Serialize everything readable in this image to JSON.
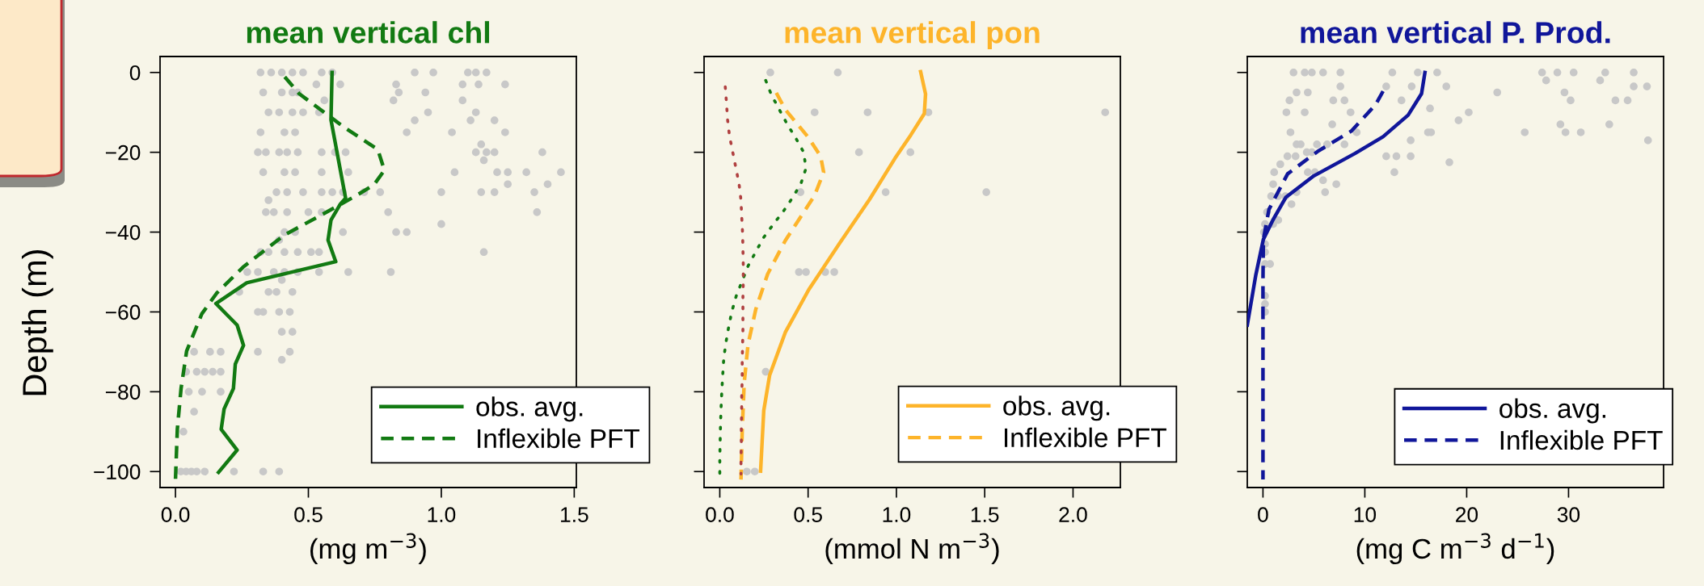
{
  "chart_data": [
    {
      "type": "line",
      "title": "mean vertical chl",
      "xlabel": "(mg m$^{−3}$)",
      "ylabel": "Depth (m)",
      "xlim": [
        -0.058,
        1.508
      ],
      "xticks": [
        {
          "value": 0,
          "label": "0.0"
        },
        {
          "value": 0.5,
          "label": "0.5"
        },
        {
          "value": 1,
          "label": "1.0"
        },
        {
          "value": 1.5,
          "label": "1.5"
        }
      ],
      "ylim": [
        -104,
        4
      ],
      "yticks": [
        {
          "value": -100,
          "label": "−100"
        },
        {
          "value": -80,
          "label": "−80"
        },
        {
          "value": -60,
          "label": "−60"
        },
        {
          "value": -40,
          "label": "−40"
        },
        {
          "value": -20,
          "label": "−20"
        },
        0
      ],
      "grid": false,
      "legend": "bottom right",
      "series": [
        {
          "type": "scatter",
          "color": "#c8c8c8",
          "marker": "circle",
          "x": [
            0.32,
            0.36,
            0.4,
            0.44,
            0.48,
            0.55,
            0.59,
            0.9,
            0.97,
            1.1,
            1.13,
            1.17,
            0.83,
            1.08,
            1.14,
            1.24,
            0.53,
            0.62,
            0.33,
            0.4,
            0.44,
            0.46,
            0.84,
            0.94,
            0.56,
            0.82,
            1.08,
            0.35,
            0.39,
            0.44,
            0.48,
            0.54,
            0.95,
            1.13,
            0.9,
            1.11,
            1.2,
            0.32,
            0.41,
            0.45,
            0.87,
            1.04,
            1.24,
            1.15,
            0.31,
            0.34,
            0.39,
            0.42,
            0.46,
            0.55,
            0.6,
            0.64,
            1.13,
            1.17,
            1.2,
            1.38,
            1.16,
            0.33,
            0.41,
            0.45,
            0.55,
            0.65,
            1.05,
            1.21,
            1.25,
            1.32,
            1.45,
            1.25,
            1.4,
            0.38,
            0.42,
            0.48,
            0.55,
            0.59,
            0.63,
            0.71,
            0.77,
            1.0,
            1.15,
            1.2,
            1.35,
            0.35,
            0.34,
            0.37,
            0.42,
            0.5,
            0.55,
            0.8,
            1.36,
            1.0,
            0.41,
            0.45,
            0.63,
            0.83,
            0.87,
            0.39,
            0.32,
            0.35,
            0.41,
            0.46,
            0.51,
            0.54,
            1.16,
            0.27,
            0.31,
            0.37,
            0.41,
            0.46,
            0.54,
            0.65,
            0.81,
            0.4,
            0.24,
            0.35,
            0.38,
            0.44,
            0.31,
            0.33,
            0.39,
            0.43,
            0.4,
            0.44,
            0.07,
            0.13,
            0.17,
            0.31,
            0.43,
            0.4,
            0.04,
            0.08,
            0.11,
            0.14,
            0.17,
            0.05,
            0.1,
            0.17,
            0.07,
            0.03,
            0.02,
            0.04,
            0.06,
            0.08,
            0.11,
            0.22,
            0.33,
            0.39
          ],
          "values": [
            0,
            0,
            0,
            0,
            0,
            0,
            0,
            0,
            0,
            0,
            0,
            0,
            -3,
            -3,
            -3,
            -3,
            -3,
            -3,
            -5,
            -5,
            -5,
            -5,
            -5,
            -5,
            -7,
            -7,
            -7,
            -10,
            -10,
            -10,
            -10,
            -10,
            -10,
            -10,
            -12,
            -12,
            -12,
            -15,
            -15,
            -15,
            -15,
            -15,
            -15,
            -18,
            -20,
            -20,
            -20,
            -20,
            -20,
            -20,
            -20,
            -20,
            -20,
            -20,
            -20,
            -20,
            -22,
            -25,
            -25,
            -25,
            -25,
            -25,
            -25,
            -25,
            -25,
            -25,
            -25,
            -28,
            -28,
            -30,
            -30,
            -30,
            -30,
            -30,
            -30,
            -30,
            -30,
            -30,
            -30,
            -30,
            -30,
            -32,
            -35,
            -35,
            -35,
            -35,
            -35,
            -35,
            -35,
            -38,
            -40,
            -40,
            -40,
            -40,
            -40,
            -42,
            -45,
            -45,
            -45,
            -45,
            -45,
            -45,
            -45,
            -50,
            -50,
            -50,
            -50,
            -50,
            -50,
            -50,
            -50,
            -52,
            -55,
            -55,
            -55,
            -55,
            -60,
            -60,
            -60,
            -60,
            -65,
            -65,
            -70,
            -70,
            -70,
            -70,
            -70,
            -72,
            -75,
            -75,
            -75,
            -75,
            -75,
            -80,
            -80,
            -80,
            -85,
            -90,
            -100,
            -100,
            -100,
            -100,
            -100,
            -100,
            -100,
            -100
          ]
        },
        {
          "name": "obs. avg.",
          "color": "#127a12",
          "line_style": "solid",
          "x": [
            0.589,
            0.585,
            0.64,
            0.62,
            0.585,
            0.574,
            0.603,
            0.268,
            0.152,
            0.232,
            0.256,
            0.225,
            0.218,
            0.183,
            0.172,
            0.232,
            0.162
          ],
          "values": [
            0,
            -11.9,
            -31.5,
            -33,
            -37,
            -42,
            -47.4,
            -52.7,
            -57.9,
            -63.3,
            -68.4,
            -73.1,
            -79.2,
            -84.3,
            -89.4,
            -94.6,
            -100.2
          ]
        },
        {
          "name": "Inflexible PFT",
          "color": "#127a12",
          "line_style": "dashed",
          "x": [
            0.411,
            0.465,
            0.634,
            0.761,
            0.786,
            0.746,
            0.676,
            0.549,
            0.408,
            0.254,
            0.155,
            0.099,
            0.042,
            0.021,
            0.007,
            0
          ],
          "values": [
            -1.1,
            -5.3,
            -13.7,
            -19.3,
            -24.5,
            -28.2,
            -31,
            -35.7,
            -40.8,
            -48.8,
            -55.3,
            -60.5,
            -69.8,
            -79.2,
            -89.4,
            -102
          ]
        }
      ]
    },
    {
      "type": "line",
      "title": "mean vertical pon",
      "xlabel": "(mmol N m$^{−3}$)",
      "xlim": [
        -0.089,
        2.268
      ],
      "xticks": [
        {
          "value": 0,
          "label": "0.0"
        },
        {
          "value": 0.5,
          "label": "0.5"
        },
        {
          "value": 1,
          "label": "1.0"
        },
        {
          "value": 1.5,
          "label": "1.5"
        },
        {
          "value": 2,
          "label": "2.0"
        }
      ],
      "ylim": [
        -104,
        4
      ],
      "yticks": [
        -100,
        -80,
        -60,
        -40,
        -20,
        0
      ],
      "tick_labels": "x",
      "grid": false,
      "legend": "bottom right",
      "series": [
        {
          "type": "scatter",
          "color": "#c8c8c8",
          "marker": "circle",
          "x": [
            0.286,
            0.668,
            0.537,
            0.837,
            1.181,
            2.182,
            0.788,
            1.079,
            0.457,
            0.939,
            1.509,
            0.448,
            0.488,
            0.597,
            0.648,
            0.26,
            0.153,
            0.198
          ],
          "values": [
            0,
            0,
            -10,
            -10,
            -10,
            -10,
            -20,
            -20,
            -30,
            -30,
            -30,
            -50,
            -50,
            -50,
            -50,
            -75,
            -100,
            -100
          ]
        },
        {
          "name": "obs. avg.",
          "color": "#fdb42a",
          "line_style": "solid",
          "x": [
            1.137,
            1.165,
            1.158,
            1.081,
            0.992,
            0.848,
            0.681,
            0.504,
            0.371,
            0.282,
            0.249,
            0.231
          ],
          "values": [
            0.2,
            -5.4,
            -10.3,
            -15.7,
            -21.5,
            -31.8,
            -42.6,
            -54.4,
            -65.1,
            -75.9,
            -84.7,
            -99.9
          ]
        },
        {
          "name": "Inflexible PFT",
          "color": "#fdb42a",
          "line_style": "dashed",
          "x": [
            0.32,
            0.371,
            0.5,
            0.571,
            0.588,
            0.537,
            0.371,
            0.271,
            0.204,
            0.16,
            0.138,
            0.127,
            0.12
          ],
          "values": [
            -5.1,
            -9.3,
            -16.2,
            -21,
            -25,
            -30.8,
            -42.1,
            -50.5,
            -59.3,
            -68.1,
            -77.9,
            -89.7,
            -102
          ]
        },
        {
          "color": "#127a12",
          "line_style": "dotted",
          "x": [
            0.26,
            0.293,
            0.337,
            0.382,
            0.431,
            0.475,
            0.488,
            0.459,
            0.41,
            0.36,
            0.304,
            0.249,
            0.204,
            0.16,
            0.127,
            0.093,
            0.067,
            0.049,
            0.033,
            0.022,
            0.016,
            0.011,
            0.007,
            0.004,
            0.002,
            0,
            0
          ],
          "values": [
            -2,
            -5.7,
            -9.3,
            -13,
            -16.5,
            -20,
            -24,
            -27.9,
            -31.5,
            -34.8,
            -38,
            -41.3,
            -44.9,
            -48.5,
            -52.2,
            -56,
            -60.1,
            -64.1,
            -68.1,
            -72,
            -76.2,
            -80.3,
            -84.3,
            -88.4,
            -92.5,
            -96.6,
            -100.6
          ]
        },
        {
          "color": "#b04040",
          "line_style": "dotted",
          "x": [
            0.031,
            0.038,
            0.044,
            0.055,
            0.073,
            0.091,
            0.109,
            0.12,
            0.124,
            0.129,
            0.131,
            0.133,
            0.133,
            0.131,
            0.131,
            0.131,
            0.129,
            0.127,
            0.127,
            0.124,
            0.124,
            0.122,
            0.122,
            0.12,
            0.12
          ],
          "values": [
            -3.6,
            -7.7,
            -11.8,
            -15.9,
            -19.9,
            -23.9,
            -27.9,
            -32,
            -36,
            -40.2,
            -44.2,
            -48.3,
            -52.4,
            -56.3,
            -60.4,
            -64.4,
            -68.5,
            -72.6,
            -76.7,
            -80.8,
            -84.7,
            -88.6,
            -92.6,
            -96.6,
            -100.6
          ]
        }
      ]
    },
    {
      "type": "line",
      "title": "mean vertical P. Prod.",
      "xlabel": "(mg C m$^{−3}$ d$^{−1}$)",
      "xlim": [
        -1.54,
        39.33
      ],
      "xticks": [
        0,
        10,
        20,
        30
      ],
      "ylim": [
        -104,
        4
      ],
      "yticks": [
        -100,
        -80,
        -60,
        -40,
        -20,
        0
      ],
      "tick_labels": "x",
      "grid": false,
      "legend": "bottom right",
      "series": [
        {
          "type": "scatter",
          "color": "#c8c8c8",
          "marker": "circle",
          "x": [
            3.0,
            4.1,
            4.8,
            5.9,
            7.6,
            12.7,
            15.2,
            17.1,
            27.4,
            28.9,
            30.5,
            33.6,
            36.4,
            27.8,
            33.1,
            7.6,
            12.1,
            14.6,
            18.0,
            36.4,
            37.7,
            3.3,
            4.4,
            23.0,
            29.6,
            2.6,
            6.9,
            8.0,
            13.6,
            30.2,
            34.6,
            35.8,
            16.4,
            2.3,
            4.1,
            8.6,
            20.2,
            19.2,
            6.8,
            29.2,
            34.0,
            2.7,
            9.2,
            16.2,
            16.5,
            29.7,
            31.2,
            25.7,
            14.5,
            37.8,
            3.3,
            3.7,
            5.3,
            6.3,
            8.0,
            4.3,
            4.8,
            2.4,
            3.2,
            12.1,
            13.1,
            14.5,
            18.3,
            1.7,
            1.1,
            4.4,
            5.1,
            12.9,
            5.9,
            1.0,
            7.2,
            3.3,
            6.1,
            0.8,
            1.5,
            2.2,
            2.8,
            0.4,
            1.5,
            0.2,
            1.0,
            0.1,
            0.2,
            0.2,
            0.2,
            0.7,
            0.2,
            0.2,
            0.2
          ],
          "values": [
            0,
            0,
            0,
            0,
            0,
            0,
            0,
            0,
            0,
            0,
            0,
            0,
            0,
            -2,
            -2,
            -3.5,
            -3.5,
            -3.5,
            -3.5,
            -3.5,
            -3.5,
            -5,
            -5,
            -5,
            -5,
            -7,
            -7,
            -7,
            -7,
            -7,
            -7,
            -7,
            -9,
            -10,
            -10,
            -10,
            -10,
            -12,
            -13,
            -13,
            -13,
            -15,
            -15,
            -15,
            -15,
            -15,
            -15,
            -15,
            -17,
            -17,
            -18,
            -18,
            -18,
            -18,
            -18,
            -20,
            -20,
            -21,
            -21,
            -21,
            -21,
            -21,
            -22.5,
            -23,
            -25,
            -25,
            -25,
            -25,
            -27,
            -28,
            -28,
            -30,
            -30,
            -31,
            -31,
            -31,
            -33,
            -35,
            -37,
            -38,
            -38,
            -40,
            -43,
            -45,
            -48,
            -48,
            -56,
            -58,
            -60
          ]
        },
        {
          "name": "obs. avg.",
          "color": "#10169a",
          "line_style": "solid",
          "x": [
            15.9,
            15.57,
            14.25,
            11.79,
            9.03,
            5.0,
            2.24,
            0.95,
            0.04,
            -0.7,
            -1.54
          ],
          "values": [
            0,
            -5.3,
            -10.7,
            -16.1,
            -20.3,
            -25.9,
            -31.3,
            -37.1,
            -41.8,
            -50.7,
            -63.3
          ]
        },
        {
          "name": "Inflexible PFT",
          "color": "#10169a",
          "line_style": "dashed",
          "x": [
            11.79,
            11.05,
            8.67,
            5.36,
            2.42,
            0.59,
            0.04,
            0,
            0
          ],
          "values": [
            -4.7,
            -8.1,
            -14.7,
            -19.8,
            -25.4,
            -34.3,
            -41.8,
            -52,
            -102
          ]
        }
      ]
    }
  ]
}
